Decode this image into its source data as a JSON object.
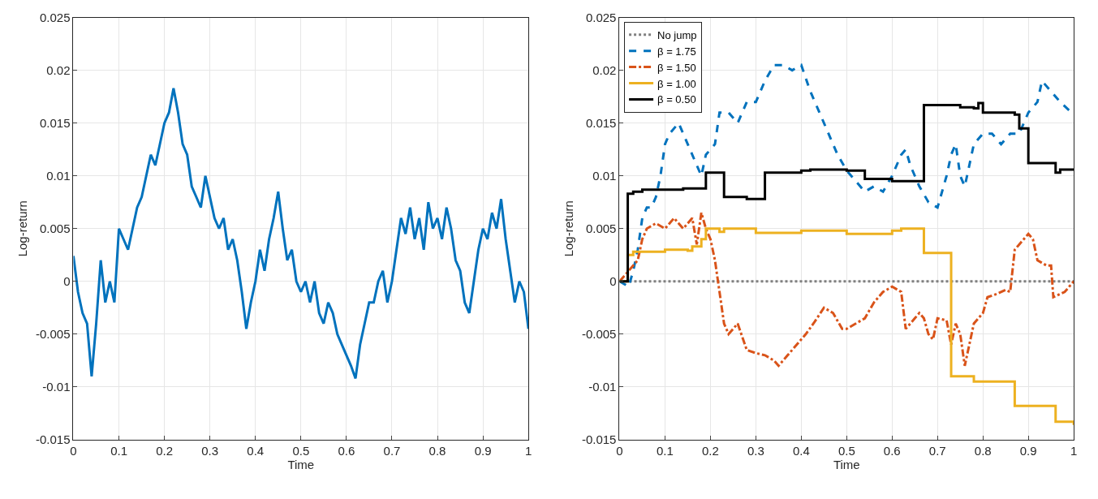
{
  "chart_data": [
    {
      "type": "line",
      "xlabel": "Time",
      "ylabel": "Log-return",
      "xlim": [
        0,
        1
      ],
      "ylim": [
        -0.015,
        0.025
      ],
      "xticks": [
        0,
        0.1,
        0.2,
        0.3,
        0.4,
        0.5,
        0.6,
        0.7,
        0.8,
        0.9,
        1
      ],
      "yticks": [
        -0.015,
        -0.01,
        -0.005,
        0,
        0.005,
        0.01,
        0.015,
        0.02,
        0.025
      ],
      "grid": true,
      "legend": false,
      "series": [
        {
          "color": "#0072bd",
          "line_style": "solid",
          "x": [
            0,
            0.01,
            0.02,
            0.03,
            0.04,
            0.05,
            0.06,
            0.07,
            0.08,
            0.09,
            0.1,
            0.11,
            0.12,
            0.13,
            0.14,
            0.15,
            0.16,
            0.17,
            0.18,
            0.19,
            0.2,
            0.21,
            0.22,
            0.23,
            0.24,
            0.25,
            0.26,
            0.27,
            0.28,
            0.29,
            0.3,
            0.31,
            0.32,
            0.33,
            0.34,
            0.35,
            0.36,
            0.37,
            0.38,
            0.39,
            0.4,
            0.41,
            0.42,
            0.43,
            0.44,
            0.45,
            0.46,
            0.47,
            0.48,
            0.49,
            0.5,
            0.51,
            0.52,
            0.53,
            0.54,
            0.55,
            0.56,
            0.57,
            0.58,
            0.59,
            0.6,
            0.61,
            0.62,
            0.63,
            0.64,
            0.65,
            0.66,
            0.67,
            0.68,
            0.69,
            0.7,
            0.71,
            0.72,
            0.73,
            0.74,
            0.75,
            0.76,
            0.77,
            0.78,
            0.79,
            0.8,
            0.81,
            0.82,
            0.83,
            0.84,
            0.85,
            0.86,
            0.87,
            0.88,
            0.89,
            0.9,
            0.91,
            0.92,
            0.93,
            0.94,
            0.95,
            0.96,
            0.97,
            0.98,
            0.99,
            1
          ],
          "values": [
            0.0024,
            -0.001,
            -0.003,
            -0.004,
            -0.009,
            -0.004,
            0.002,
            -0.002,
            0.0,
            -0.002,
            0.005,
            0.004,
            0.003,
            0.005,
            0.007,
            0.008,
            0.01,
            0.012,
            0.011,
            0.013,
            0.015,
            0.016,
            0.0183,
            0.016,
            0.013,
            0.012,
            0.009,
            0.008,
            0.007,
            0.01,
            0.008,
            0.006,
            0.005,
            0.006,
            0.003,
            0.004,
            0.002,
            -0.001,
            -0.0045,
            -0.002,
            0.0,
            0.003,
            0.001,
            0.004,
            0.006,
            0.0085,
            0.005,
            0.002,
            0.003,
            0.0,
            -0.001,
            0.0,
            -0.002,
            0.0,
            -0.003,
            -0.004,
            -0.002,
            -0.003,
            -0.005,
            -0.006,
            -0.007,
            -0.008,
            -0.0092,
            -0.006,
            -0.004,
            -0.002,
            -0.002,
            0.0,
            0.001,
            -0.002,
            0.0,
            0.003,
            0.006,
            0.0045,
            0.007,
            0.004,
            0.006,
            0.003,
            0.0075,
            0.005,
            0.006,
            0.004,
            0.007,
            0.005,
            0.002,
            0.001,
            -0.002,
            -0.003,
            0.0,
            0.003,
            0.005,
            0.004,
            0.0065,
            0.005,
            0.0078,
            0.004,
            0.001,
            -0.002,
            0.0,
            -0.001,
            -0.0045
          ]
        }
      ]
    },
    {
      "type": "line",
      "xlabel": "Time",
      "ylabel": "Log-return",
      "xlim": [
        0,
        1
      ],
      "ylim": [
        -0.015,
        0.025
      ],
      "xticks": [
        0,
        0.1,
        0.2,
        0.3,
        0.4,
        0.5,
        0.6,
        0.7,
        0.8,
        0.9,
        1
      ],
      "yticks": [
        -0.015,
        -0.01,
        -0.005,
        0,
        0.005,
        0.01,
        0.015,
        0.02,
        0.025
      ],
      "grid": true,
      "legend": "top left",
      "series": [
        {
          "name": "No jump",
          "color": "#808080",
          "line_style": "dotted",
          "x": [
            0,
            1
          ],
          "values": [
            0,
            0
          ]
        },
        {
          "name": "β = 1.75",
          "color": "#0072bd",
          "line_style": "dashed",
          "x": [
            0,
            0.02,
            0.03,
            0.04,
            0.05,
            0.06,
            0.07,
            0.08,
            0.09,
            0.1,
            0.11,
            0.13,
            0.15,
            0.17,
            0.18,
            0.19,
            0.21,
            0.22,
            0.24,
            0.26,
            0.28,
            0.3,
            0.32,
            0.34,
            0.36,
            0.38,
            0.4,
            0.42,
            0.44,
            0.46,
            0.48,
            0.5,
            0.52,
            0.54,
            0.56,
            0.58,
            0.6,
            0.62,
            0.63,
            0.64,
            0.66,
            0.68,
            0.7,
            0.72,
            0.73,
            0.74,
            0.75,
            0.76,
            0.77,
            0.78,
            0.8,
            0.82,
            0.84,
            0.86,
            0.88,
            0.9,
            0.92,
            0.93,
            0.95,
            0.97,
            1
          ],
          "values": [
            0,
            -0.0005,
            0.001,
            0.003,
            0.006,
            0.007,
            0.007,
            0.008,
            0.01,
            0.013,
            0.014,
            0.015,
            0.013,
            0.011,
            0.01,
            0.012,
            0.013,
            0.016,
            0.016,
            0.015,
            0.017,
            0.017,
            0.019,
            0.0205,
            0.0205,
            0.02,
            0.0205,
            0.018,
            0.016,
            0.014,
            0.012,
            0.0105,
            0.0095,
            0.0085,
            0.009,
            0.0085,
            0.01,
            0.012,
            0.0125,
            0.011,
            0.009,
            0.0075,
            0.007,
            0.01,
            0.012,
            0.013,
            0.01,
            0.009,
            0.011,
            0.013,
            0.014,
            0.014,
            0.013,
            0.014,
            0.014,
            0.016,
            0.017,
            0.019,
            0.018,
            0.017,
            0.0158
          ]
        },
        {
          "name": "β = 1.50",
          "color": "#d95319",
          "line_style": "dashdot",
          "x": [
            0,
            0.02,
            0.04,
            0.05,
            0.06,
            0.08,
            0.1,
            0.12,
            0.14,
            0.16,
            0.17,
            0.18,
            0.19,
            0.2,
            0.21,
            0.22,
            0.23,
            0.24,
            0.26,
            0.28,
            0.3,
            0.32,
            0.34,
            0.35,
            0.37,
            0.39,
            0.41,
            0.43,
            0.45,
            0.47,
            0.49,
            0.5,
            0.52,
            0.54,
            0.56,
            0.58,
            0.6,
            0.62,
            0.63,
            0.65,
            0.66,
            0.67,
            0.68,
            0.69,
            0.7,
            0.72,
            0.73,
            0.74,
            0.75,
            0.76,
            0.78,
            0.8,
            0.81,
            0.83,
            0.85,
            0.86,
            0.87,
            0.88,
            0.9,
            0.91,
            0.92,
            0.94,
            0.95,
            0.955,
            0.97,
            0.98,
            1
          ],
          "values": [
            0,
            0.001,
            0.002,
            0.004,
            0.005,
            0.0055,
            0.005,
            0.006,
            0.005,
            0.006,
            0.0035,
            0.0065,
            0.005,
            0.004,
            0.002,
            -0.001,
            -0.004,
            -0.005,
            -0.004,
            -0.0065,
            -0.0068,
            -0.007,
            -0.0075,
            -0.008,
            -0.007,
            -0.006,
            -0.005,
            -0.0038,
            -0.0025,
            -0.003,
            -0.0045,
            -0.0045,
            -0.004,
            -0.0035,
            -0.002,
            -0.001,
            -0.0005,
            -0.001,
            -0.0045,
            -0.0035,
            -0.003,
            -0.0035,
            -0.005,
            -0.0055,
            -0.0035,
            -0.0037,
            -0.006,
            -0.004,
            -0.005,
            -0.008,
            -0.004,
            -0.003,
            -0.0015,
            -0.0012,
            -0.0008,
            -0.001,
            0.003,
            0.0035,
            0.0045,
            0.004,
            0.002,
            0.0015,
            0.0015,
            -0.0015,
            -0.0012,
            -0.001,
            0.0
          ]
        },
        {
          "name": "β = 1.00",
          "color": "#edb120",
          "line_style": "solid",
          "type": "step",
          "x": [
            0,
            0.018,
            0.03,
            0.1,
            0.15,
            0.16,
            0.18,
            0.19,
            0.22,
            0.23,
            0.3,
            0.4,
            0.5,
            0.6,
            0.62,
            0.67,
            0.73,
            0.78,
            0.87,
            0.96,
            1
          ],
          "values": [
            0,
            0.0025,
            0.0028,
            0.003,
            0.0029,
            0.0033,
            0.004,
            0.005,
            0.0047,
            0.005,
            0.0046,
            0.0048,
            0.0045,
            0.0048,
            0.005,
            0.0027,
            -0.009,
            -0.0095,
            -0.0118,
            -0.0133,
            -0.0136
          ]
        },
        {
          "name": "β = 0.50",
          "color": "#000000",
          "line_style": "solid",
          "type": "step",
          "x": [
            0,
            0.018,
            0.03,
            0.05,
            0.14,
            0.19,
            0.23,
            0.28,
            0.32,
            0.4,
            0.42,
            0.5,
            0.54,
            0.6,
            0.67,
            0.75,
            0.78,
            0.79,
            0.8,
            0.87,
            0.88,
            0.9,
            0.96,
            0.97,
            1
          ],
          "values": [
            0,
            0.0083,
            0.0085,
            0.0087,
            0.0088,
            0.0103,
            0.008,
            0.0078,
            0.0103,
            0.0105,
            0.0106,
            0.0105,
            0.0097,
            0.0095,
            0.0167,
            0.0165,
            0.0164,
            0.0169,
            0.016,
            0.0158,
            0.0145,
            0.0112,
            0.0103,
            0.0106,
            0.0106
          ]
        }
      ]
    }
  ]
}
